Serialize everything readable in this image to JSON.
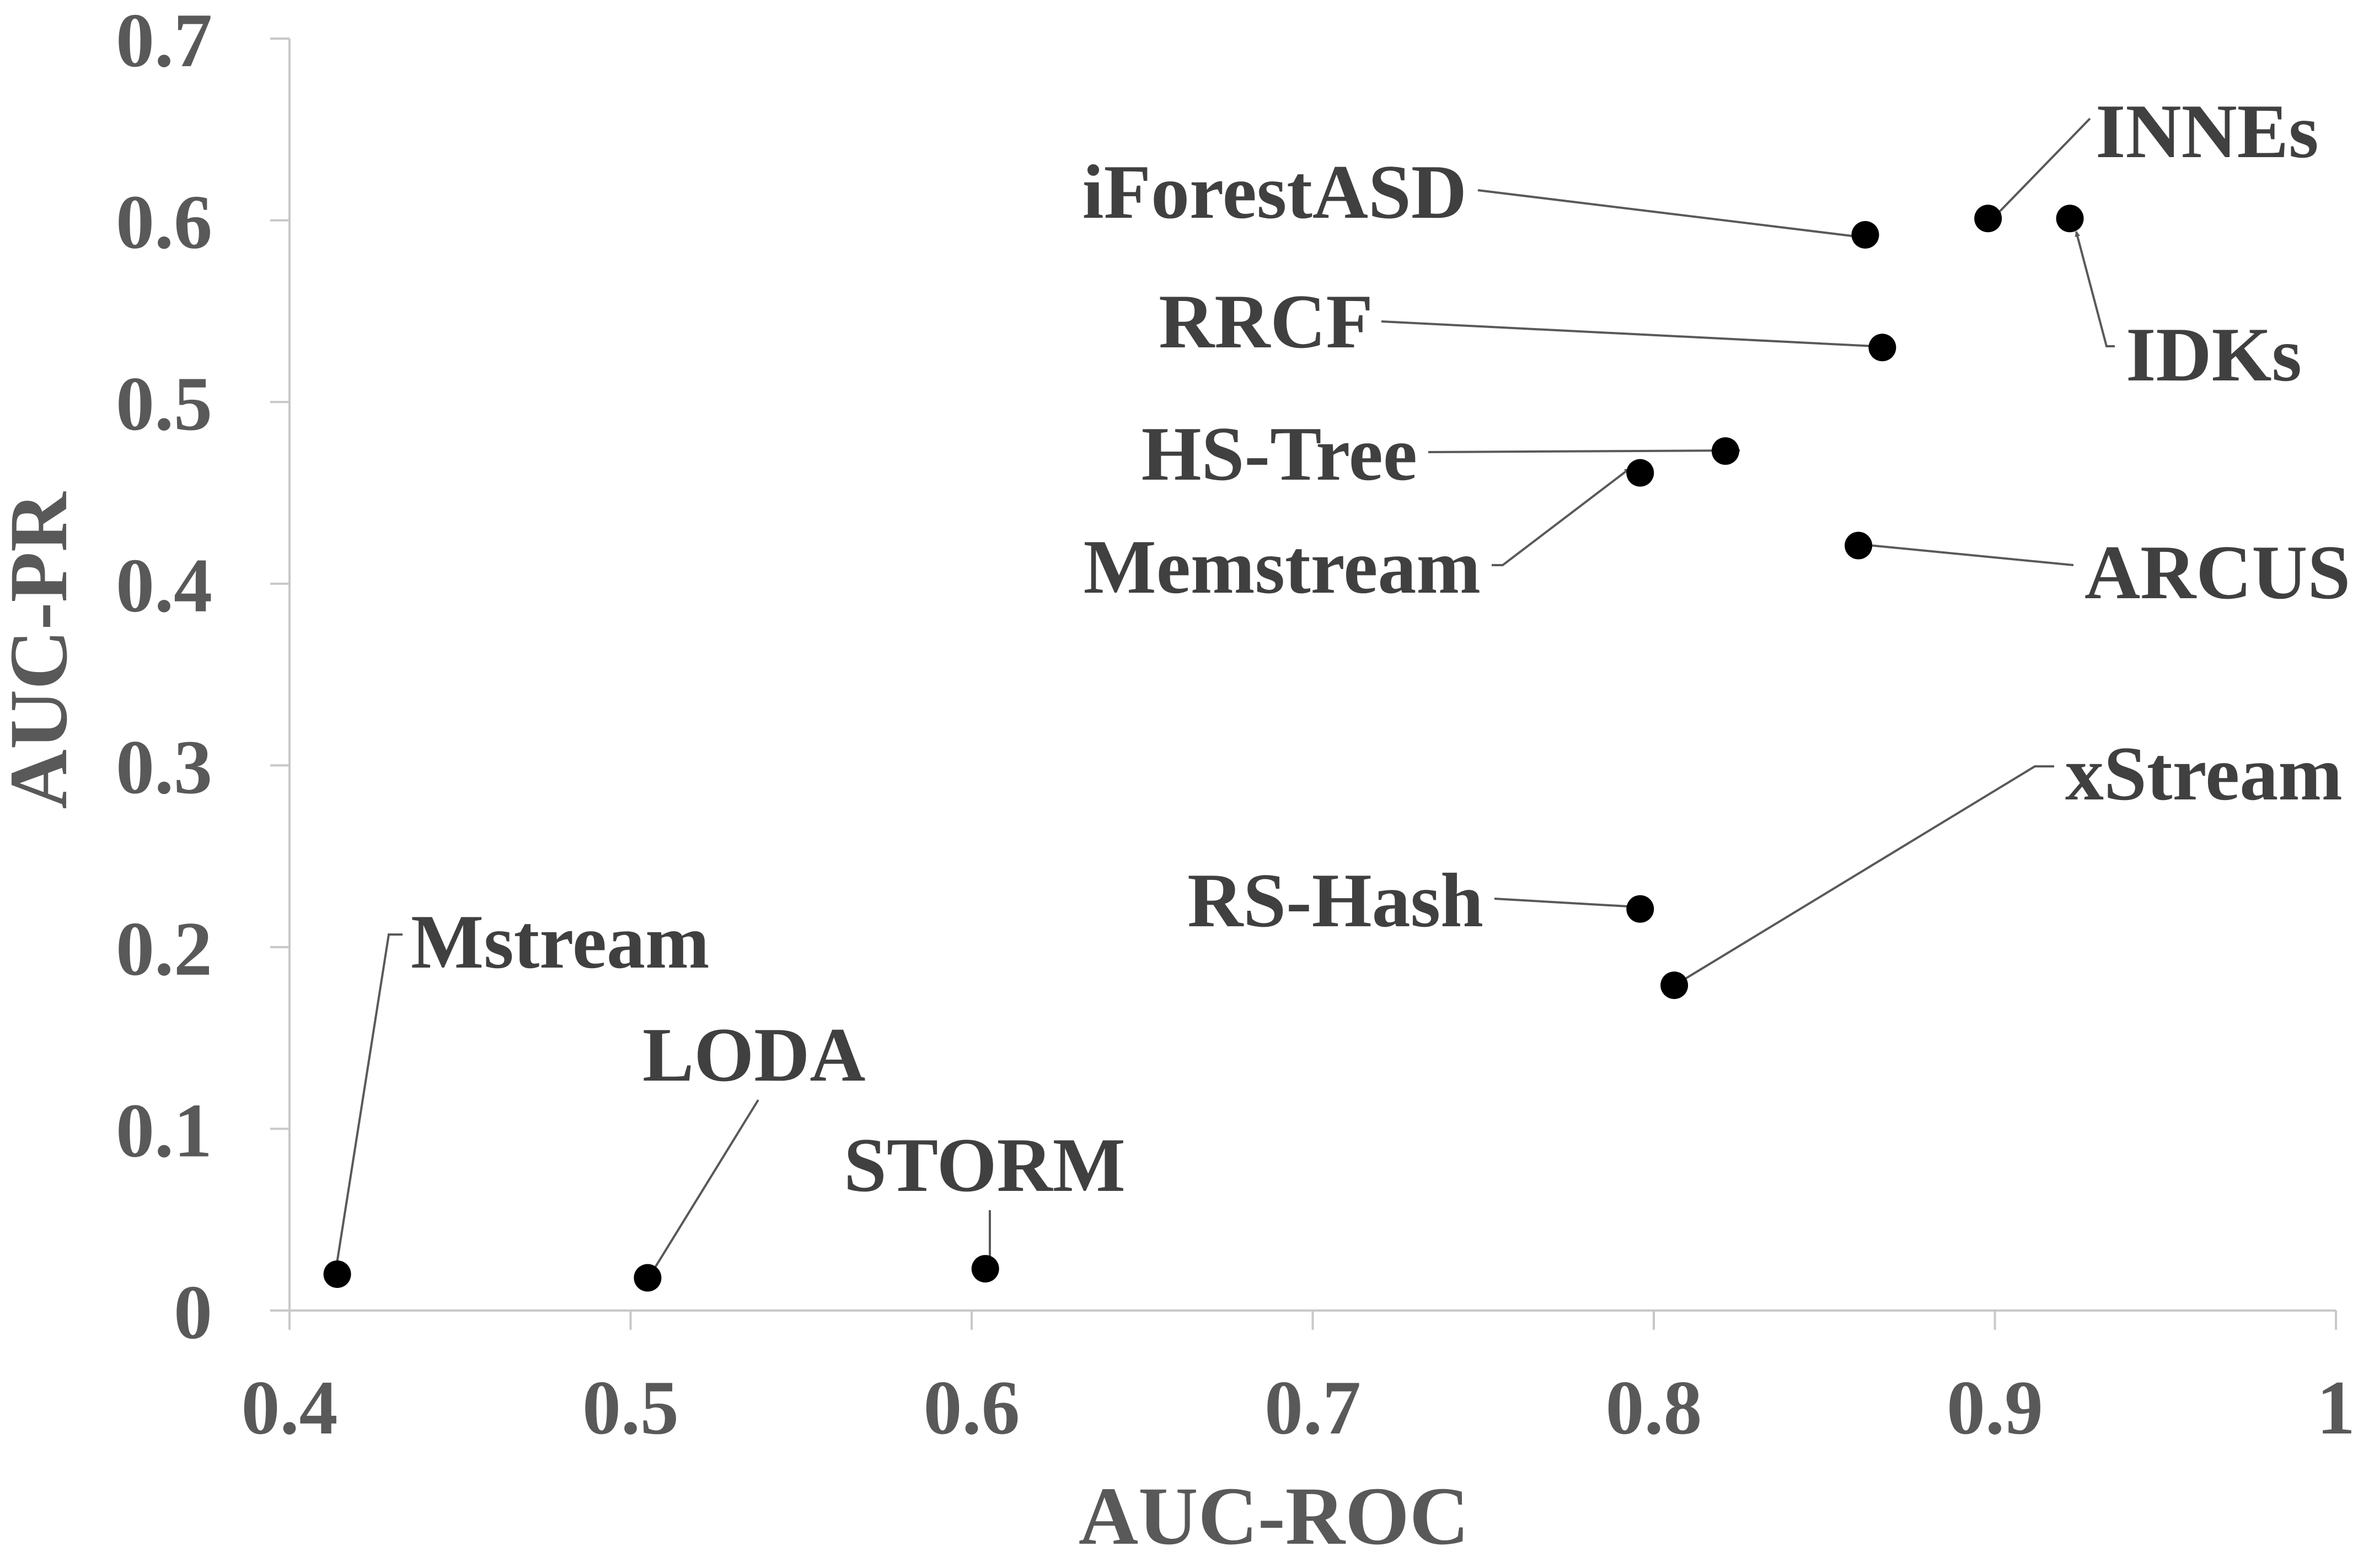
{
  "chart_data": {
    "type": "scatter",
    "title": "",
    "xlabel": "AUC-ROC",
    "ylabel": "AUC-PR",
    "xlim": [
      0.4,
      1.0
    ],
    "ylim": [
      0,
      0.7
    ],
    "xticks": [
      0.4,
      0.5,
      0.6,
      0.7,
      0.8,
      0.9,
      1.0
    ],
    "xtick_labels": [
      "0.4",
      "0.5",
      "0.6",
      "0.7",
      "0.8",
      "0.9",
      "1"
    ],
    "yticks": [
      0,
      0.1,
      0.2,
      0.3,
      0.4,
      0.5,
      0.6,
      0.7
    ],
    "ytick_labels": [
      "0",
      "0.1",
      "0.2",
      "0.3",
      "0.4",
      "0.5",
      "0.6",
      "0.7"
    ],
    "grid": false,
    "legend": "none",
    "marker_color": "#000000",
    "points": [
      {
        "label": "INNEs",
        "x": 0.898,
        "y": 0.601
      },
      {
        "label": "IDKs",
        "x": 0.922,
        "y": 0.601
      },
      {
        "label": "iForestASD",
        "x": 0.862,
        "y": 0.592
      },
      {
        "label": "RRCF",
        "x": 0.867,
        "y": 0.53
      },
      {
        "label": "HS-Tree",
        "x": 0.821,
        "y": 0.473
      },
      {
        "label": "Memstream",
        "x": 0.796,
        "y": 0.461
      },
      {
        "label": "ARCUS",
        "x": 0.86,
        "y": 0.421
      },
      {
        "label": "RS-Hash",
        "x": 0.796,
        "y": 0.221
      },
      {
        "label": "xStream",
        "x": 0.806,
        "y": 0.179
      },
      {
        "label": "Mstream",
        "x": 0.414,
        "y": 0.02
      },
      {
        "label": "LODA",
        "x": 0.505,
        "y": 0.018
      },
      {
        "label": "STORM",
        "x": 0.604,
        "y": 0.023
      }
    ]
  }
}
